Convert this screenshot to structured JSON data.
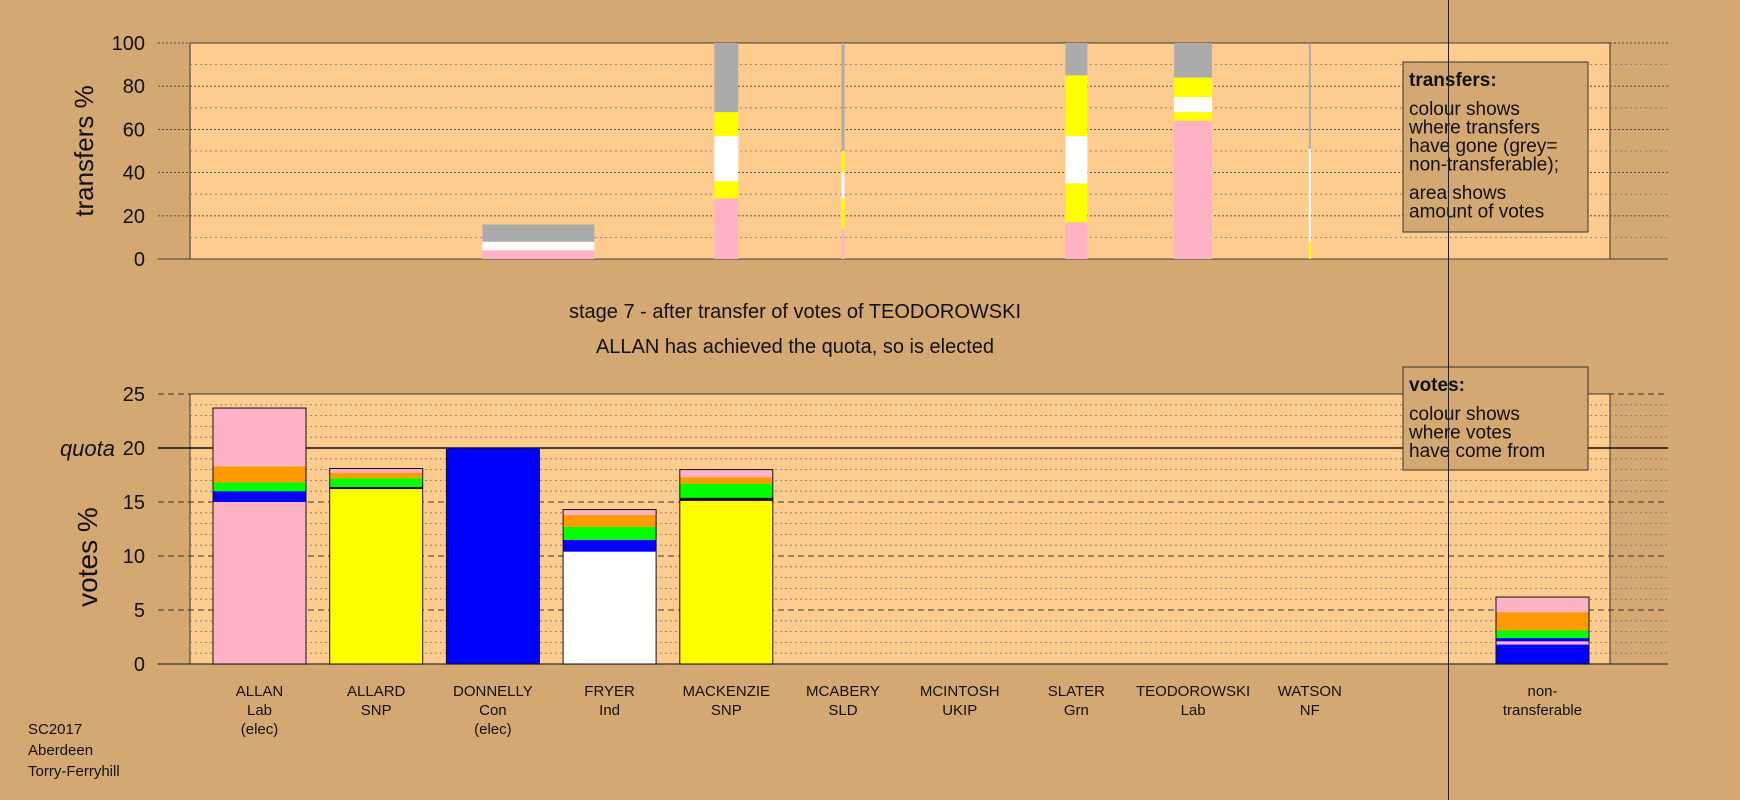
{
  "colors": {
    "background": "#D4A872",
    "plot_area": "#FFCC8F",
    "grey": "#ABABAB",
    "Lab": "#FFB2C6",
    "SNP": "#FFFF00",
    "Con": "#0000FF",
    "Ind": "#FFFFFF",
    "Grn": "#00FF00",
    "other": "#FF9B00",
    "dark": "#111111"
  },
  "chart_data": [
    {
      "type": "bar",
      "name": "transfers",
      "ylabel": "transfers %",
      "ylim": [
        0,
        100
      ],
      "yticks": [
        "0",
        "20",
        "40",
        "60",
        "80",
        "100"
      ],
      "stacked": true,
      "legend": {
        "placement": "top-right",
        "title": "transfers:",
        "text1": [
          "colour shows",
          "where transfers",
          "have gone (grey=",
          "non-transferable);"
        ],
        "text2": [
          "area shows",
          "amount of votes"
        ]
      },
      "columns": [
        {
          "candidate": "DONNELLY",
          "segments": [
            {
              "color": "Lab",
              "value": 4
            },
            {
              "color": "white",
              "value": 4
            },
            {
              "color": "grey",
              "value": 8
            }
          ]
        },
        {
          "candidate": "MACKENZIE",
          "segments": [
            {
              "color": "Lab",
              "value": 28
            },
            {
              "color": "SNP",
              "value": 8
            },
            {
              "color": "white",
              "value": 21
            },
            {
              "color": "SNP",
              "value": 11
            },
            {
              "color": "grey",
              "value": 32
            }
          ]
        },
        {
          "candidate": "MCABERY",
          "segments": [
            {
              "color": "Lab",
              "value": 14
            },
            {
              "color": "SNP",
              "value": 14
            },
            {
              "color": "white",
              "value": 12
            },
            {
              "color": "SNP",
              "value": 10
            },
            {
              "color": "grey",
              "value": 50
            }
          ]
        },
        {
          "candidate": "SLATER",
          "segments": [
            {
              "color": "Lab",
              "value": 17
            },
            {
              "color": "SNP",
              "value": 18
            },
            {
              "color": "white",
              "value": 22
            },
            {
              "color": "SNP",
              "value": 28
            },
            {
              "color": "grey",
              "value": 15
            }
          ]
        },
        {
          "candidate": "TEODOROWSKI",
          "segments": [
            {
              "color": "Lab",
              "value": 64
            },
            {
              "color": "SNP",
              "value": 4
            },
            {
              "color": "white",
              "value": 7
            },
            {
              "color": "SNP",
              "value": 9
            },
            {
              "color": "grey",
              "value": 16
            }
          ]
        },
        {
          "candidate": "WATSON",
          "segments": [
            {
              "color": "SNP",
              "value": 8
            },
            {
              "color": "white",
              "value": 43
            },
            {
              "color": "grey",
              "value": 49
            }
          ]
        }
      ]
    },
    {
      "type": "bar",
      "name": "votes",
      "ylabel": "votes %",
      "ylim": [
        0,
        25
      ],
      "yticks": [
        "0",
        "5",
        "10",
        "15",
        "20",
        "25"
      ],
      "quota": 20,
      "quota_label": "quota",
      "stacked": true,
      "legend": {
        "placement": "top-right",
        "title": "votes:",
        "text1": [
          "colour shows",
          "where votes",
          "have come from"
        ]
      },
      "categories": [
        {
          "name": "ALLAN",
          "party": "Lab",
          "note": "(elec)"
        },
        {
          "name": "ALLARD",
          "party": "SNP",
          "note": ""
        },
        {
          "name": "DONNELLY",
          "party": "Con",
          "note": "(elec)"
        },
        {
          "name": "FRYER",
          "party": "Ind",
          "note": ""
        },
        {
          "name": "MACKENZIE",
          "party": "SNP",
          "note": ""
        },
        {
          "name": "MCABERY",
          "party": "SLD",
          "note": ""
        },
        {
          "name": "MCINTOSH",
          "party": "UKIP",
          "note": ""
        },
        {
          "name": "SLATER",
          "party": "Grn",
          "note": ""
        },
        {
          "name": "TEODOROWSKI",
          "party": "Lab",
          "note": ""
        },
        {
          "name": "WATSON",
          "party": "NF",
          "note": ""
        }
      ],
      "bars": [
        {
          "candidate": "ALLAN",
          "segments": [
            {
              "color": "Lab",
              "value": 15.0
            },
            {
              "color": "Con",
              "value": 1.0
            },
            {
              "color": "Grn",
              "value": 0.8
            },
            {
              "color": "other",
              "value": 1.5
            },
            {
              "color": "Lab",
              "value": 5.4
            }
          ]
        },
        {
          "candidate": "ALLARD",
          "segments": [
            {
              "color": "SNP",
              "value": 16.2
            },
            {
              "color": "dark",
              "value": 0.2
            },
            {
              "color": "Grn",
              "value": 0.8
            },
            {
              "color": "other",
              "value": 0.5
            },
            {
              "color": "Lab",
              "value": 0.4
            }
          ]
        },
        {
          "candidate": "DONNELLY",
          "segments": [
            {
              "color": "Con",
              "value": 20.0
            }
          ]
        },
        {
          "candidate": "FRYER",
          "segments": [
            {
              "color": "Ind",
              "value": 10.4
            },
            {
              "color": "Con",
              "value": 1.1
            },
            {
              "color": "Grn",
              "value": 1.2
            },
            {
              "color": "other",
              "value": 1.1
            },
            {
              "color": "Lab",
              "value": 0.5
            }
          ]
        },
        {
          "candidate": "MACKENZIE",
          "segments": [
            {
              "color": "SNP",
              "value": 15.1
            },
            {
              "color": "dark",
              "value": 0.3
            },
            {
              "color": "Grn",
              "value": 1.3
            },
            {
              "color": "other",
              "value": 0.6
            },
            {
              "color": "Lab",
              "value": 0.7
            }
          ]
        },
        {
          "candidate": "non-transferable",
          "segments": [
            {
              "color": "Con",
              "value": 1.8
            },
            {
              "color": "Lab",
              "value": 0.3
            },
            {
              "color": "Con",
              "value": 0.3
            },
            {
              "color": "Grn",
              "value": 0.7
            },
            {
              "color": "other",
              "value": 1.7
            },
            {
              "color": "Lab",
              "value": 1.4
            }
          ]
        }
      ],
      "nontransferable_label": [
        "non-",
        "transferable"
      ]
    }
  ],
  "stage_title": "stage 7 - after transfer of votes of TEODOROWSKI",
  "stage_subtitle": "ALLAN has achieved the quota, so is elected",
  "footer": [
    "SC2017",
    "Aberdeen",
    "Torry-Ferryhill"
  ]
}
